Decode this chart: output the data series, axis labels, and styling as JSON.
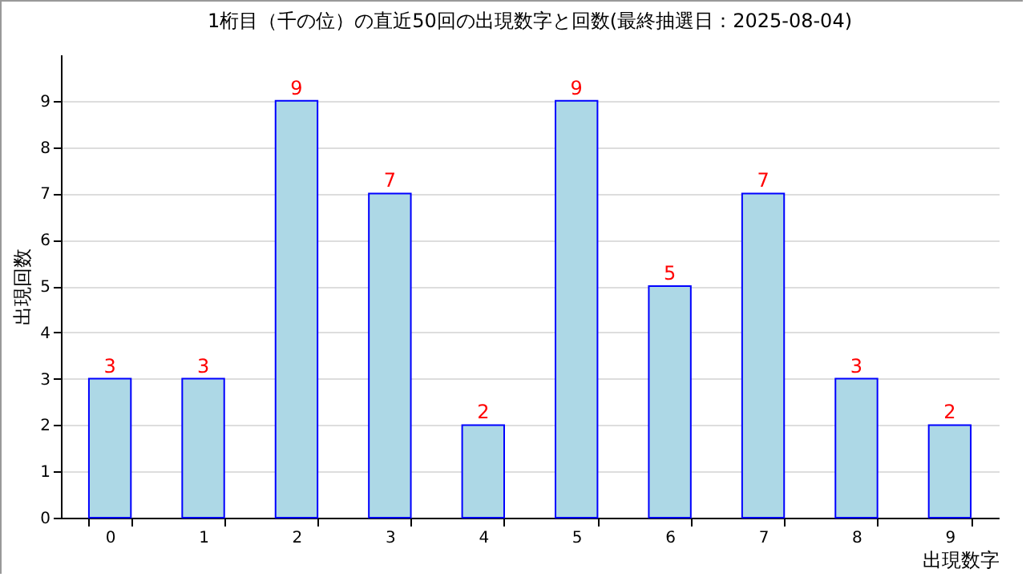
{
  "chart_data": {
    "type": "bar",
    "title": "1桁目（千の位）の直近50回の出現数字と回数(最終抽選日：2025-08-04)",
    "xlabel": "出現数字",
    "ylabel": "出現回数",
    "categories": [
      "0",
      "1",
      "2",
      "3",
      "4",
      "5",
      "6",
      "7",
      "8",
      "9"
    ],
    "values": [
      3,
      3,
      9,
      7,
      2,
      9,
      5,
      7,
      3,
      2
    ],
    "color": "#add8e6",
    "ylim": [
      0,
      10
    ],
    "yticks": [
      0,
      1,
      2,
      3,
      4,
      5,
      6,
      7,
      8,
      9
    ],
    "grid": "y",
    "data_labels": true
  }
}
